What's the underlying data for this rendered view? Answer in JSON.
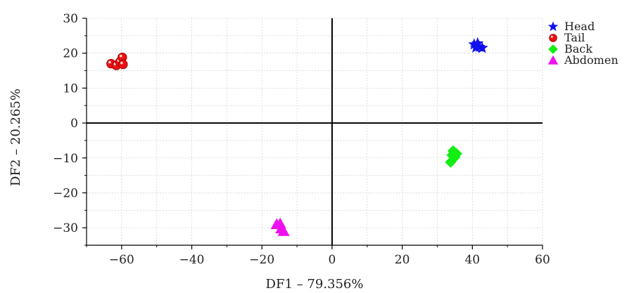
{
  "chart_data": {
    "type": "scatter",
    "title": "",
    "xlabel": "DF1 – 79.356%",
    "ylabel": "DF2 – 20.265%",
    "xlim": [
      -70,
      60
    ],
    "ylim": [
      -35,
      30
    ],
    "x_ticks": [
      -60,
      -40,
      -20,
      0,
      20,
      40,
      60
    ],
    "y_ticks": [
      -30,
      -20,
      -10,
      0,
      10,
      20,
      30
    ],
    "x_tick_labels": [
      "−60",
      "−40",
      "−20",
      "0",
      "20",
      "40",
      "60"
    ],
    "y_tick_labels": [
      "−30",
      "−20",
      "−10",
      "0",
      "10",
      "20",
      "30"
    ],
    "grid": true,
    "zero_lines": true,
    "legend_position": "top-right",
    "series": [
      {
        "name": "Head",
        "marker": "star",
        "color": "#1010ee",
        "points": [
          [
            40.5,
            22.5
          ],
          [
            41.5,
            22.8
          ],
          [
            42.0,
            21.8
          ],
          [
            41.0,
            21.6
          ],
          [
            42.8,
            21.5
          ]
        ]
      },
      {
        "name": "Tail",
        "marker": "circle",
        "color": "#ee1111",
        "points": [
          [
            -63.0,
            17.0
          ],
          [
            -61.5,
            16.5
          ],
          [
            -60.5,
            17.5
          ],
          [
            -59.8,
            18.8
          ],
          [
            -59.6,
            16.8
          ]
        ]
      },
      {
        "name": "Back",
        "marker": "diamond",
        "color": "#11ee11",
        "points": [
          [
            34.5,
            -8.0
          ],
          [
            35.5,
            -8.8
          ],
          [
            34.2,
            -9.2
          ],
          [
            33.8,
            -11.2
          ],
          [
            35.0,
            -9.8
          ]
        ]
      },
      {
        "name": "Abdomen",
        "marker": "triangle",
        "color": "#ee11ee",
        "points": [
          [
            -15.8,
            -29.0
          ],
          [
            -14.8,
            -28.8
          ],
          [
            -14.5,
            -30.2
          ],
          [
            -13.8,
            -31.0
          ]
        ]
      }
    ]
  }
}
